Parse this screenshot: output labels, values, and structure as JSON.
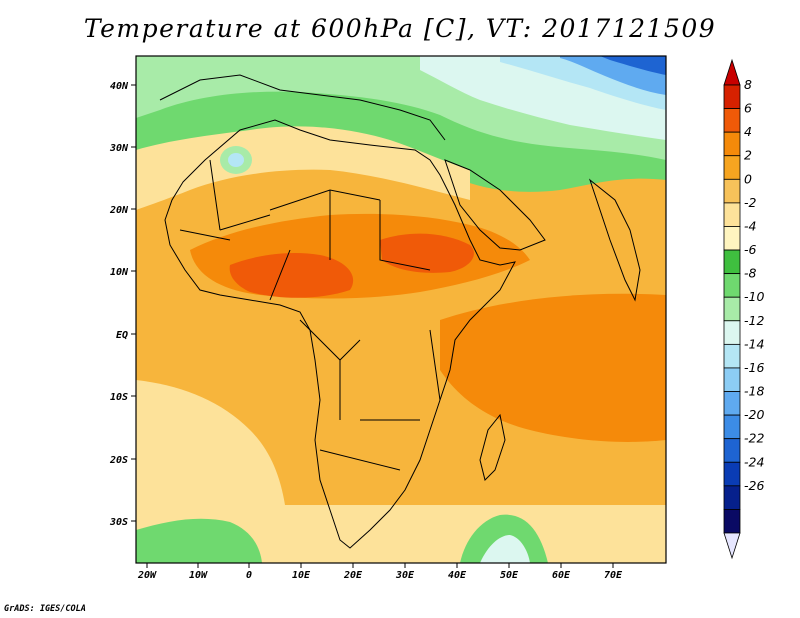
{
  "title": "Temperature at 600hPa [C], VT: 2017121509",
  "credit": "GrADS: IGES/COLA",
  "map": {
    "region": "Africa",
    "variable": "Temperature at 600hPa",
    "units": "C",
    "lat_labels": [
      "40N",
      "30N",
      "20N",
      "10N",
      "EQ",
      "10S",
      "20S",
      "30S"
    ],
    "lon_labels": [
      "20W",
      "10W",
      "0",
      "10E",
      "20E",
      "30E",
      "40E",
      "50E",
      "60E",
      "70E"
    ]
  },
  "colorbar": {
    "labels": [
      "8",
      "6",
      "4",
      "2",
      "0",
      "-2",
      "-4",
      "-6",
      "-8",
      "-10",
      "-12",
      "-14",
      "-16",
      "-18",
      "-20",
      "-22",
      "-24",
      "-26"
    ],
    "colors": [
      "#d62100",
      "#f05a08",
      "#f58a0a",
      "#f7a520",
      "#f7c25a",
      "#fde29a",
      "#fff5c0",
      "#3fbf3f",
      "#6fd96f",
      "#a8eba8",
      "#dcf7f0",
      "#b4e6f5",
      "#8ccdf5",
      "#5faaf0",
      "#3c8ce6",
      "#1e64d2",
      "#0a3cb4",
      "#06208c",
      "#0a0a64"
    ],
    "top_arrow_color": "#c80000",
    "bottom_arrow_color": "#e6e6ff"
  }
}
